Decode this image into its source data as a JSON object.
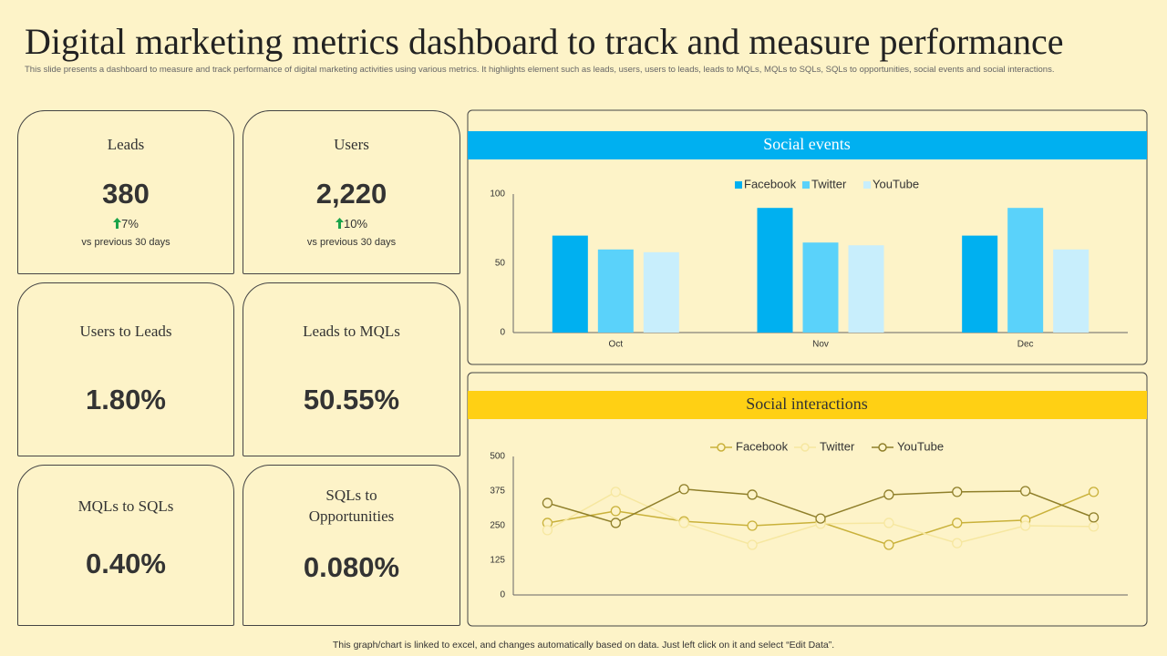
{
  "title": "Digital marketing metrics dashboard to track and measure performance",
  "subtitle": "This slide presents a dashboard to measure and track performance of digital marketing activities using various metrics. It highlights element such as leads, users, users to leads, leads to MQLs, MQLs to SQLs, SQLs to opportunities, social events and social interactions.",
  "kpis": [
    {
      "label": "Leads",
      "value": "380",
      "change": "7%",
      "note": "vs previous 30 days"
    },
    {
      "label": "Users",
      "value": "2,220",
      "change": "10%",
      "note": "vs previous 30 days"
    },
    {
      "label": "Users to Leads",
      "value": "1.80%"
    },
    {
      "label": "Leads to MQLs",
      "value": "50.55%"
    },
    {
      "label": "MQLs to SQLs",
      "value": "0.40%"
    },
    {
      "label": "SQLs to Opportunities",
      "value": "0.080%"
    }
  ],
  "chart_data": [
    {
      "type": "bar",
      "title": "Social events",
      "categories": [
        "Oct",
        "Nov",
        "Dec"
      ],
      "series": [
        {
          "name": "Facebook",
          "color": "#00b0f0",
          "values": [
            70,
            90,
            70
          ]
        },
        {
          "name": "Twitter",
          "color": "#5ad2fa",
          "values": [
            60,
            65,
            90
          ]
        },
        {
          "name": "YouTube",
          "color": "#c8eefc",
          "values": [
            58,
            63,
            60
          ]
        }
      ],
      "ylim": [
        0,
        100
      ],
      "yticks": [
        0,
        50,
        100
      ],
      "grid": false,
      "legend": "top"
    },
    {
      "type": "line",
      "title": "Social interactions",
      "categories": [
        null,
        null,
        null,
        null,
        null,
        null,
        null,
        null,
        null
      ],
      "series": [
        {
          "name": "Facebook",
          "color": "#c9b13a",
          "values": [
            260,
            303,
            266,
            250,
            263,
            181,
            260,
            270,
            372
          ]
        },
        {
          "name": "Twitter",
          "color": "#f6e7a0",
          "values": [
            234,
            372,
            260,
            181,
            257,
            260,
            187,
            250,
            247
          ]
        },
        {
          "name": "YouTube",
          "color": "#8f7f2a",
          "values": [
            332,
            260,
            382,
            362,
            276,
            362,
            372,
            375,
            280
          ]
        }
      ],
      "ylim": [
        0,
        500
      ],
      "yticks": [
        0,
        125,
        250,
        375,
        500
      ],
      "grid": false,
      "legend": "top"
    }
  ],
  "footer": "This graph/chart is linked to excel, and changes automatically based on data. Just left click on it and select “Edit Data”."
}
